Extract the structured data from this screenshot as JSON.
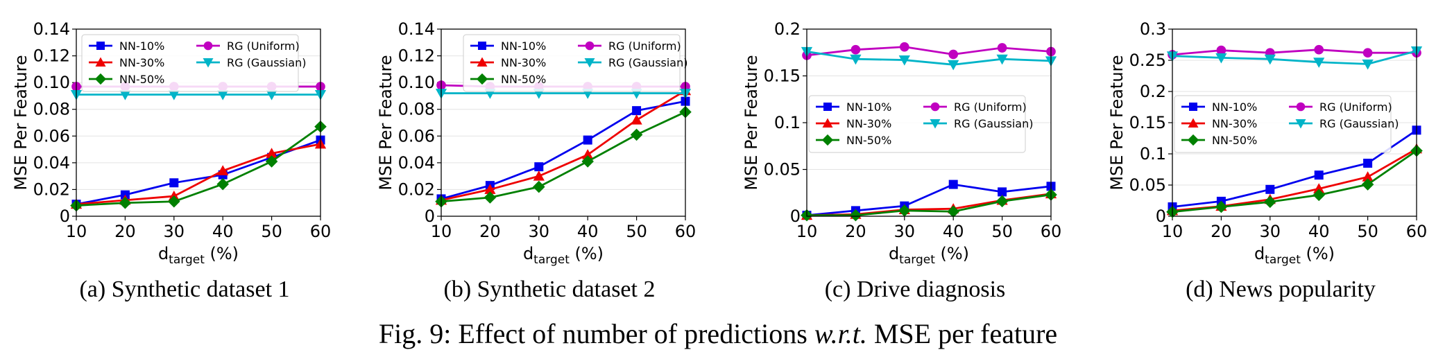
{
  "figure": {
    "label": "Fig. 9:",
    "text_before": "Effect of number of predictions",
    "emphasis": "w.r.t.",
    "text_after": "MSE per feature"
  },
  "series_styles": [
    {
      "name": "NN-10%",
      "color": "#0000ee",
      "marker": "square"
    },
    {
      "name": "NN-30%",
      "color": "#ee0000",
      "marker": "triangle-up"
    },
    {
      "name": "NN-50%",
      "color": "#008000",
      "marker": "diamond"
    },
    {
      "name": "RG (Uniform)",
      "color": "#c000c0",
      "marker": "circle"
    },
    {
      "name": "RG (Gaussian)",
      "color": "#00b4c8",
      "marker": "triangle-down"
    }
  ],
  "chart_data": [
    {
      "type": "line",
      "caption": "(a) Synthetic dataset 1",
      "title": "",
      "xlabel_main": "d",
      "xlabel_sub": "target",
      "xlabel_suffix": " (%)",
      "ylabel": "MSE Per Feature",
      "x": [
        10,
        20,
        30,
        40,
        50,
        60
      ],
      "xlim": [
        10,
        60
      ],
      "ylim": [
        0,
        0.14
      ],
      "yticks": [
        "0",
        "0.02",
        "0.04",
        "0.06",
        "0.08",
        "0.10",
        "0.12",
        "0.14"
      ],
      "xticks": [
        "10",
        "20",
        "30",
        "40",
        "50",
        "60"
      ],
      "legend_position": "top-left",
      "series": [
        {
          "name": "NN-10%",
          "values": [
            0.009,
            0.016,
            0.025,
            0.031,
            0.044,
            0.057
          ]
        },
        {
          "name": "NN-30%",
          "values": [
            0.009,
            0.012,
            0.015,
            0.034,
            0.047,
            0.054
          ]
        },
        {
          "name": "NN-50%",
          "values": [
            0.008,
            0.01,
            0.011,
            0.024,
            0.041,
            0.067
          ]
        },
        {
          "name": "RG (Uniform)",
          "values": [
            0.097,
            0.097,
            0.097,
            0.097,
            0.097,
            0.097
          ]
        },
        {
          "name": "RG (Gaussian)",
          "values": [
            0.091,
            0.091,
            0.091,
            0.091,
            0.091,
            0.091
          ]
        }
      ]
    },
    {
      "type": "line",
      "caption": "(b) Synthetic dataset 2",
      "title": "",
      "xlabel_main": "d",
      "xlabel_sub": "target",
      "xlabel_suffix": " (%)",
      "ylabel": "MSE Per Feature",
      "x": [
        10,
        20,
        30,
        40,
        50,
        60
      ],
      "xlim": [
        10,
        60
      ],
      "ylim": [
        0,
        0.14
      ],
      "yticks": [
        "0",
        "0.02",
        "0.04",
        "0.06",
        "0.08",
        "0.10",
        "0.12",
        "0.14"
      ],
      "xticks": [
        "10",
        "20",
        "30",
        "40",
        "50",
        "60"
      ],
      "legend_position": "top-right",
      "series": [
        {
          "name": "NN-10%",
          "values": [
            0.013,
            0.023,
            0.037,
            0.057,
            0.079,
            0.086
          ]
        },
        {
          "name": "NN-30%",
          "values": [
            0.012,
            0.02,
            0.03,
            0.046,
            0.072,
            0.094
          ]
        },
        {
          "name": "NN-50%",
          "values": [
            0.011,
            0.014,
            0.022,
            0.041,
            0.061,
            0.078
          ]
        },
        {
          "name": "RG (Uniform)",
          "values": [
            0.098,
            0.097,
            0.097,
            0.097,
            0.097,
            0.097
          ]
        },
        {
          "name": "RG (Gaussian)",
          "values": [
            0.092,
            0.092,
            0.092,
            0.092,
            0.092,
            0.092
          ]
        }
      ]
    },
    {
      "type": "line",
      "caption": "(c) Drive diagnosis",
      "title": "",
      "xlabel_main": "d",
      "xlabel_sub": "target",
      "xlabel_suffix": " (%)",
      "ylabel": "MSE Per Feature",
      "x": [
        10,
        20,
        30,
        40,
        50,
        60
      ],
      "xlim": [
        10,
        60
      ],
      "ylim": [
        0,
        0.2
      ],
      "yticks": [
        "0",
        "0.05",
        "0.1",
        "0.15",
        "0.2"
      ],
      "xticks": [
        "10",
        "20",
        "30",
        "40",
        "50",
        "60"
      ],
      "legend_position": "center-left",
      "series": [
        {
          "name": "NN-10%",
          "values": [
            0.001,
            0.006,
            0.011,
            0.034,
            0.026,
            0.032
          ]
        },
        {
          "name": "NN-30%",
          "values": [
            0.001,
            0.002,
            0.007,
            0.008,
            0.017,
            0.024
          ]
        },
        {
          "name": "NN-50%",
          "values": [
            0.001,
            0.001,
            0.006,
            0.005,
            0.016,
            0.023
          ]
        },
        {
          "name": "RG (Uniform)",
          "values": [
            0.172,
            0.178,
            0.181,
            0.173,
            0.18,
            0.176
          ]
        },
        {
          "name": "RG (Gaussian)",
          "values": [
            0.176,
            0.168,
            0.167,
            0.162,
            0.168,
            0.166
          ]
        }
      ]
    },
    {
      "type": "line",
      "caption": "(d) News popularity",
      "title": "",
      "xlabel_main": "d",
      "xlabel_sub": "target",
      "xlabel_suffix": " (%)",
      "ylabel": "MSE Per Feature",
      "x": [
        10,
        20,
        30,
        40,
        50,
        60
      ],
      "xlim": [
        10,
        60
      ],
      "ylim": [
        0,
        0.3
      ],
      "yticks": [
        "0",
        "0.05",
        "0.1",
        "0.15",
        "0.2",
        "0.25",
        "0.3"
      ],
      "xticks": [
        "10",
        "20",
        "30",
        "40",
        "50",
        "60"
      ],
      "legend_position": "center-left",
      "series": [
        {
          "name": "NN-10%",
          "values": [
            0.015,
            0.024,
            0.043,
            0.066,
            0.085,
            0.138
          ]
        },
        {
          "name": "NN-30%",
          "values": [
            0.009,
            0.016,
            0.027,
            0.044,
            0.063,
            0.108
          ]
        },
        {
          "name": "NN-50%",
          "values": [
            0.007,
            0.015,
            0.023,
            0.034,
            0.051,
            0.105
          ]
        },
        {
          "name": "RG (Uniform)",
          "values": [
            0.259,
            0.266,
            0.262,
            0.267,
            0.262,
            0.262
          ]
        },
        {
          "name": "RG (Gaussian)",
          "values": [
            0.257,
            0.254,
            0.252,
            0.247,
            0.244,
            0.265
          ]
        }
      ]
    }
  ]
}
